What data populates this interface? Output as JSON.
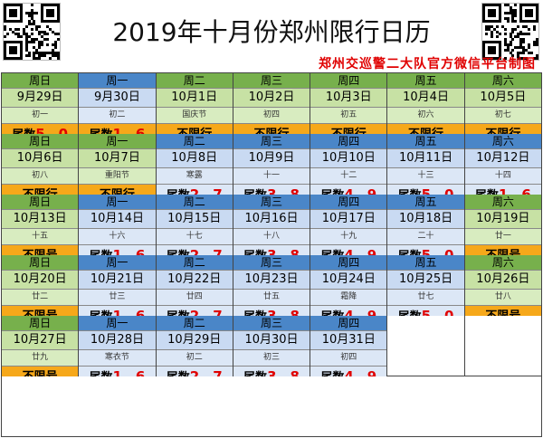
{
  "header": {
    "title": "2019年十月份郑州限行日历",
    "source": "郑州交巡警二大队官方微信平台制图"
  },
  "rows": [
    [
      {
        "weekday": "周日",
        "date": "9月29日",
        "lunar": "初一",
        "rule_prefix": "尾数",
        "digits": "5、0",
        "scheme": "green",
        "rule_style": "orange"
      },
      {
        "weekday": "周一",
        "date": "9月30日",
        "lunar": "初二",
        "rule_prefix": "尾数",
        "digits": "1、6",
        "scheme": "blue",
        "rule_style": "orange"
      },
      {
        "weekday": "周二",
        "date": "10月1日",
        "lunar": "国庆节",
        "rule_prefix": "不限行",
        "digits": "",
        "scheme": "green",
        "rule_style": "orange"
      },
      {
        "weekday": "周三",
        "date": "10月2日",
        "lunar": "初四",
        "rule_prefix": "不限行",
        "digits": "",
        "scheme": "green",
        "rule_style": "orange"
      },
      {
        "weekday": "周四",
        "date": "10月3日",
        "lunar": "初五",
        "rule_prefix": "不限行",
        "digits": "",
        "scheme": "green",
        "rule_style": "orange"
      },
      {
        "weekday": "周五",
        "date": "10月4日",
        "lunar": "初六",
        "rule_prefix": "不限行",
        "digits": "",
        "scheme": "green",
        "rule_style": "orange"
      },
      {
        "weekday": "周六",
        "date": "10月5日",
        "lunar": "初七",
        "rule_prefix": "不限行",
        "digits": "",
        "scheme": "green",
        "rule_style": "orange"
      }
    ],
    [
      {
        "weekday": "周日",
        "date": "10月6日",
        "lunar": "初八",
        "rule_prefix": "不限行",
        "digits": "",
        "scheme": "green",
        "rule_style": "orange"
      },
      {
        "weekday": "周一",
        "date": "10月7日",
        "lunar": "重阳节",
        "rule_prefix": "不限行",
        "digits": "",
        "scheme": "green",
        "rule_style": "orange"
      },
      {
        "weekday": "周二",
        "date": "10月8日",
        "lunar": "寒露",
        "rule_prefix": "尾数",
        "digits": "2、7",
        "scheme": "blue",
        "rule_style": "light"
      },
      {
        "weekday": "周三",
        "date": "10月9日",
        "lunar": "十一",
        "rule_prefix": "尾数",
        "digits": "3、8",
        "scheme": "blue",
        "rule_style": "light"
      },
      {
        "weekday": "周四",
        "date": "10月10日",
        "lunar": "十二",
        "rule_prefix": "尾数",
        "digits": "4、9",
        "scheme": "blue",
        "rule_style": "light"
      },
      {
        "weekday": "周五",
        "date": "10月11日",
        "lunar": "十三",
        "rule_prefix": "尾数",
        "digits": "5、0",
        "scheme": "blue",
        "rule_style": "light"
      },
      {
        "weekday": "周六",
        "date": "10月12日",
        "lunar": "十四",
        "rule_prefix": "尾数",
        "digits": "1、6",
        "scheme": "blue",
        "rule_style": "light"
      }
    ],
    [
      {
        "weekday": "周日",
        "date": "10月13日",
        "lunar": "十五",
        "rule_prefix": "不限号",
        "digits": "",
        "scheme": "green",
        "rule_style": "orange"
      },
      {
        "weekday": "周一",
        "date": "10月14日",
        "lunar": "十六",
        "rule_prefix": "尾数",
        "digits": "1、6",
        "scheme": "blue",
        "rule_style": "light"
      },
      {
        "weekday": "周二",
        "date": "10月15日",
        "lunar": "十七",
        "rule_prefix": "尾数",
        "digits": "2、7",
        "scheme": "blue",
        "rule_style": "light"
      },
      {
        "weekday": "周三",
        "date": "10月16日",
        "lunar": "十八",
        "rule_prefix": "尾数",
        "digits": "3、8",
        "scheme": "blue",
        "rule_style": "light"
      },
      {
        "weekday": "周四",
        "date": "10月17日",
        "lunar": "十九",
        "rule_prefix": "尾数",
        "digits": "4、9",
        "scheme": "blue",
        "rule_style": "light"
      },
      {
        "weekday": "周五",
        "date": "10月18日",
        "lunar": "二十",
        "rule_prefix": "尾数",
        "digits": "5、0",
        "scheme": "blue",
        "rule_style": "light"
      },
      {
        "weekday": "周六",
        "date": "10月19日",
        "lunar": "廿一",
        "rule_prefix": "不限号",
        "digits": "",
        "scheme": "green",
        "rule_style": "orange"
      }
    ],
    [
      {
        "weekday": "周日",
        "date": "10月20日",
        "lunar": "廿二",
        "rule_prefix": "不限号",
        "digits": "",
        "scheme": "green",
        "rule_style": "orange"
      },
      {
        "weekday": "周一",
        "date": "10月21日",
        "lunar": "廿三",
        "rule_prefix": "尾数",
        "digits": "1、6",
        "scheme": "blue",
        "rule_style": "light"
      },
      {
        "weekday": "周二",
        "date": "10月22日",
        "lunar": "廿四",
        "rule_prefix": "尾数",
        "digits": "2、7",
        "scheme": "blue",
        "rule_style": "light"
      },
      {
        "weekday": "周三",
        "date": "10月23日",
        "lunar": "廿五",
        "rule_prefix": "尾数",
        "digits": "3、8",
        "scheme": "blue",
        "rule_style": "light"
      },
      {
        "weekday": "周四",
        "date": "10月24日",
        "lunar": "霜降",
        "rule_prefix": "尾数",
        "digits": "4、9",
        "scheme": "blue",
        "rule_style": "light"
      },
      {
        "weekday": "周五",
        "date": "10月25日",
        "lunar": "廿七",
        "rule_prefix": "尾数",
        "digits": "5、0",
        "scheme": "blue",
        "rule_style": "light"
      },
      {
        "weekday": "周六",
        "date": "10月26日",
        "lunar": "廿八",
        "rule_prefix": "不限号",
        "digits": "",
        "scheme": "green",
        "rule_style": "orange"
      }
    ],
    [
      {
        "weekday": "周日",
        "date": "10月27日",
        "lunar": "廿九",
        "rule_prefix": "不限号",
        "digits": "",
        "scheme": "green",
        "rule_style": "orange"
      },
      {
        "weekday": "周一",
        "date": "10月28日",
        "lunar": "寒衣节",
        "rule_prefix": "尾数",
        "digits": "1、6",
        "scheme": "blue",
        "rule_style": "light"
      },
      {
        "weekday": "周二",
        "date": "10月29日",
        "lunar": "初二",
        "rule_prefix": "尾数",
        "digits": "2、7",
        "scheme": "blue",
        "rule_style": "light"
      },
      {
        "weekday": "周三",
        "date": "10月30日",
        "lunar": "初三",
        "rule_prefix": "尾数",
        "digits": "3、8",
        "scheme": "blue",
        "rule_style": "light"
      },
      {
        "weekday": "周四",
        "date": "10月31日",
        "lunar": "初四",
        "rule_prefix": "尾数",
        "digits": "4、9",
        "scheme": "blue",
        "rule_style": "light"
      },
      null,
      null
    ]
  ],
  "colors": {
    "weekday_blue": "#4a86c8",
    "weekday_green": "#77b04c",
    "rule_orange": "#f6a81a",
    "digit_red": "#e00000",
    "source_red": "#e00000"
  },
  "icons": {
    "qr_left": "qr-code-icon",
    "qr_right": "qr-code-icon"
  }
}
